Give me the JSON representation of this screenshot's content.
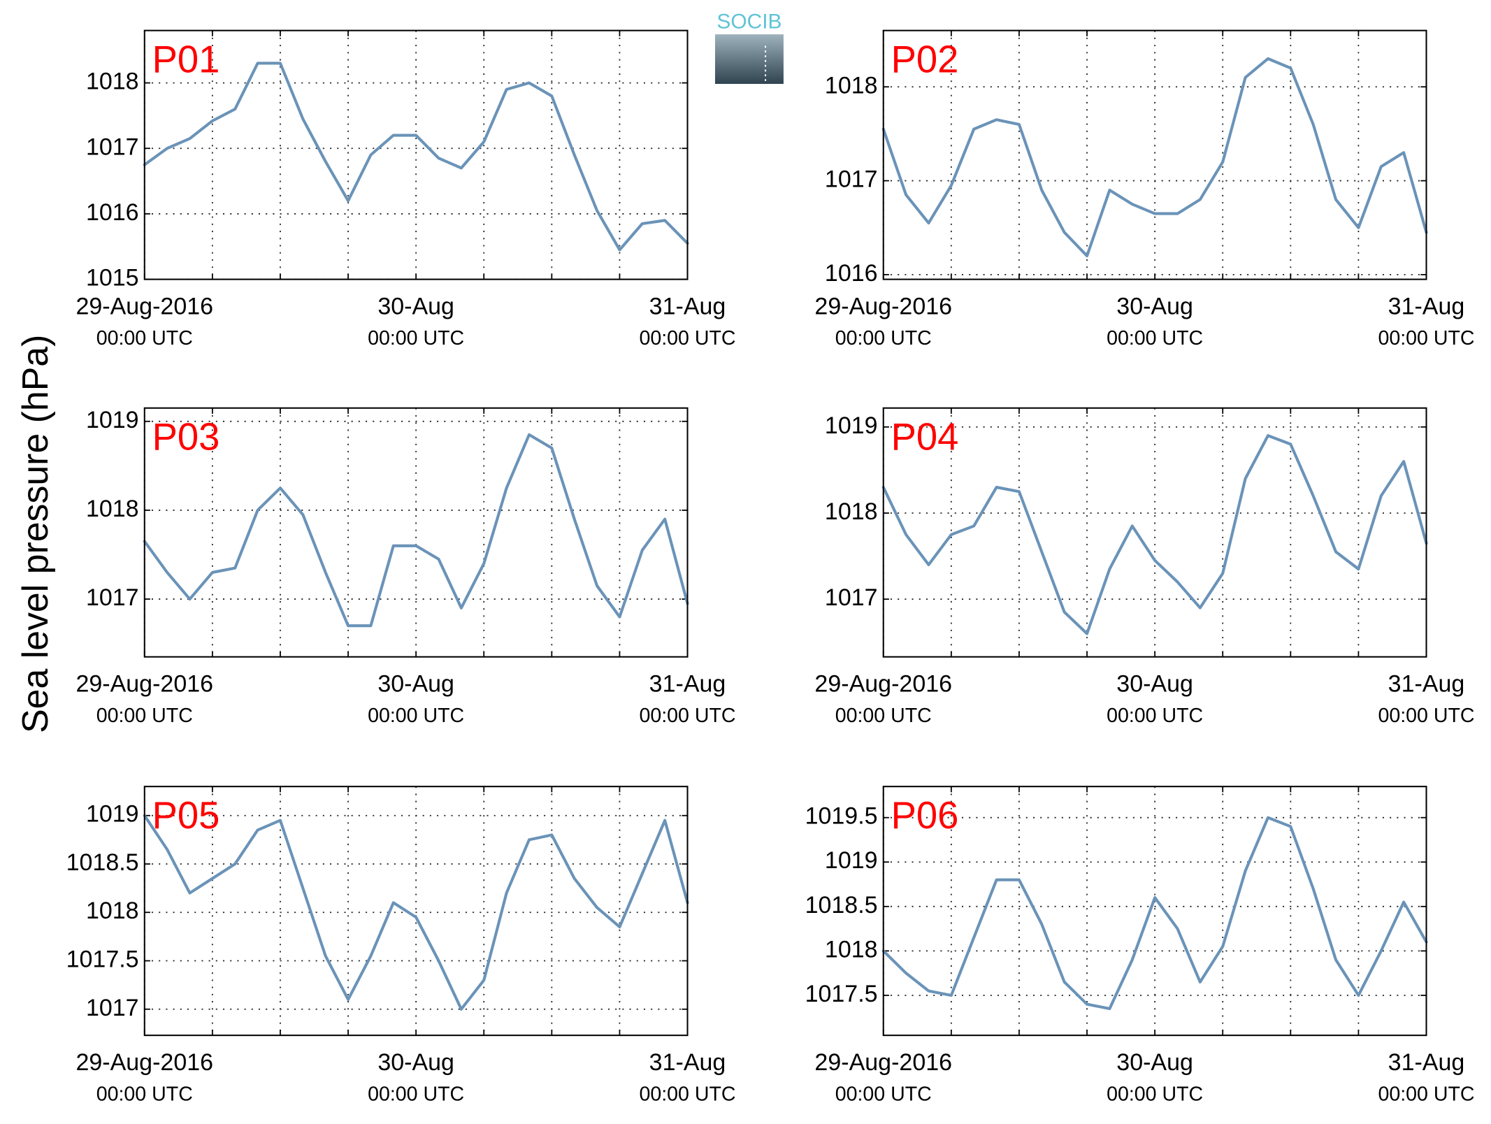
{
  "ylabel": "Sea level pressure (hPa)",
  "logo": "SOCIB",
  "chart_data": [
    {
      "type": "line",
      "title": "P01",
      "color": "#6a93b8",
      "xlim": [
        0,
        48
      ],
      "ylim": [
        1015,
        1018.8
      ],
      "yticks": [
        1015,
        1016,
        1017,
        1018
      ],
      "xticks": [
        {
          "value": 0,
          "label": "29-Aug-2016",
          "sublabel": "00:00 UTC"
        },
        {
          "value": 24,
          "label": "30-Aug",
          "sublabel": "00:00 UTC"
        },
        {
          "value": 48,
          "label": "31-Aug",
          "sublabel": "00:00 UTC"
        }
      ],
      "xminorticks": [
        6,
        12,
        18,
        30,
        36,
        42
      ],
      "grid": true,
      "x": [
        0,
        2,
        4,
        6,
        8,
        10,
        12,
        14,
        16,
        18,
        20,
        22,
        24,
        26,
        28,
        30,
        32,
        34,
        36,
        38,
        40,
        42,
        44,
        46,
        48
      ],
      "values": [
        1016.75,
        1017.0,
        1017.15,
        1017.42,
        1017.6,
        1018.3,
        1018.3,
        1017.45,
        1016.8,
        1016.2,
        1016.9,
        1017.2,
        1017.2,
        1016.85,
        1016.7,
        1017.1,
        1017.9,
        1018.0,
        1017.8,
        1016.9,
        1016.05,
        1015.45,
        1015.85,
        1015.9,
        1015.55
      ]
    },
    {
      "type": "line",
      "title": "P02",
      "color": "#6a93b8",
      "xlim": [
        0,
        48
      ],
      "ylim": [
        1015.95,
        1018.6
      ],
      "yticks": [
        1016,
        1017,
        1018
      ],
      "xticks": [
        {
          "value": 0,
          "label": "29-Aug-2016",
          "sublabel": "00:00 UTC"
        },
        {
          "value": 24,
          "label": "30-Aug",
          "sublabel": "00:00 UTC"
        },
        {
          "value": 48,
          "label": "31-Aug",
          "sublabel": "00:00 UTC"
        }
      ],
      "xminorticks": [
        6,
        12,
        18,
        30,
        36,
        42
      ],
      "grid": true,
      "x": [
        0,
        2,
        4,
        6,
        8,
        10,
        12,
        14,
        16,
        18,
        20,
        22,
        24,
        26,
        28,
        30,
        32,
        34,
        36,
        38,
        40,
        42,
        44,
        46,
        48
      ],
      "values": [
        1017.55,
        1016.85,
        1016.55,
        1016.95,
        1017.55,
        1017.65,
        1017.6,
        1016.9,
        1016.45,
        1016.2,
        1016.9,
        1016.75,
        1016.65,
        1016.65,
        1016.8,
        1017.2,
        1018.1,
        1018.3,
        1018.2,
        1017.6,
        1016.8,
        1016.5,
        1017.15,
        1017.3,
        1016.45
      ]
    },
    {
      "type": "line",
      "title": "P03",
      "color": "#6a93b8",
      "xlim": [
        0,
        48
      ],
      "ylim": [
        1016.35,
        1019.15
      ],
      "yticks": [
        1017,
        1018,
        1019
      ],
      "xticks": [
        {
          "value": 0,
          "label": "29-Aug-2016",
          "sublabel": "00:00 UTC"
        },
        {
          "value": 24,
          "label": "30-Aug",
          "sublabel": "00:00 UTC"
        },
        {
          "value": 48,
          "label": "31-Aug",
          "sublabel": "00:00 UTC"
        }
      ],
      "xminorticks": [
        6,
        12,
        18,
        30,
        36,
        42
      ],
      "grid": true,
      "x": [
        0,
        2,
        4,
        6,
        8,
        10,
        12,
        14,
        16,
        18,
        20,
        22,
        24,
        26,
        28,
        30,
        32,
        34,
        36,
        38,
        40,
        42,
        44,
        46,
        48
      ],
      "values": [
        1017.65,
        1017.3,
        1017.0,
        1017.3,
        1017.35,
        1018.0,
        1018.25,
        1017.95,
        1017.3,
        1016.7,
        1016.7,
        1017.6,
        1017.6,
        1017.45,
        1016.9,
        1017.4,
        1018.25,
        1018.85,
        1018.7,
        1017.9,
        1017.15,
        1016.8,
        1017.55,
        1017.9,
        1016.95
      ]
    },
    {
      "type": "line",
      "title": "P04",
      "color": "#6a93b8",
      "xlim": [
        0,
        48
      ],
      "ylim": [
        1016.33,
        1019.22
      ],
      "yticks": [
        1017,
        1018,
        1019
      ],
      "xticks": [
        {
          "value": 0,
          "label": "29-Aug-2016",
          "sublabel": "00:00 UTC"
        },
        {
          "value": 24,
          "label": "30-Aug",
          "sublabel": "00:00 UTC"
        },
        {
          "value": 48,
          "label": "31-Aug",
          "sublabel": "00:00 UTC"
        }
      ],
      "xminorticks": [
        6,
        12,
        18,
        30,
        36,
        42
      ],
      "grid": true,
      "x": [
        0,
        2,
        4,
        6,
        8,
        10,
        12,
        14,
        16,
        18,
        20,
        22,
        24,
        26,
        28,
        30,
        32,
        34,
        36,
        38,
        40,
        42,
        44,
        46,
        48
      ],
      "values": [
        1018.3,
        1017.75,
        1017.4,
        1017.75,
        1017.85,
        1018.3,
        1018.25,
        1017.55,
        1016.85,
        1016.6,
        1017.35,
        1017.85,
        1017.45,
        1017.2,
        1016.9,
        1017.3,
        1018.4,
        1018.9,
        1018.8,
        1018.2,
        1017.55,
        1017.35,
        1018.2,
        1018.6,
        1017.65
      ]
    },
    {
      "type": "line",
      "title": "P05",
      "color": "#6a93b8",
      "xlim": [
        0,
        48
      ],
      "ylim": [
        1016.73,
        1019.3
      ],
      "yticks": [
        1017,
        1017.5,
        1018,
        1018.5,
        1019
      ],
      "xticks": [
        {
          "value": 0,
          "label": "29-Aug-2016",
          "sublabel": "00:00 UTC"
        },
        {
          "value": 24,
          "label": "30-Aug",
          "sublabel": "00:00 UTC"
        },
        {
          "value": 48,
          "label": "31-Aug",
          "sublabel": "00:00 UTC"
        }
      ],
      "xminorticks": [
        6,
        12,
        18,
        30,
        36,
        42
      ],
      "grid": true,
      "x": [
        0,
        2,
        4,
        6,
        8,
        10,
        12,
        14,
        16,
        18,
        20,
        22,
        24,
        26,
        28,
        30,
        32,
        34,
        36,
        38,
        40,
        42,
        44,
        46,
        48
      ],
      "values": [
        1019.0,
        1018.65,
        1018.2,
        1018.35,
        1018.5,
        1018.85,
        1018.95,
        1018.25,
        1017.55,
        1017.1,
        1017.55,
        1018.1,
        1017.95,
        1017.5,
        1017.0,
        1017.3,
        1018.2,
        1018.75,
        1018.8,
        1018.35,
        1018.05,
        1017.85,
        1018.4,
        1018.95,
        1018.1
      ]
    },
    {
      "type": "line",
      "title": "P06",
      "color": "#6a93b8",
      "xlim": [
        0,
        48
      ],
      "ylim": [
        1017.05,
        1019.85
      ],
      "yticks": [
        1017.5,
        1018,
        1018.5,
        1019,
        1019.5
      ],
      "xticks": [
        {
          "value": 0,
          "label": "29-Aug-2016",
          "sublabel": "00:00 UTC"
        },
        {
          "value": 24,
          "label": "30-Aug",
          "sublabel": "00:00 UTC"
        },
        {
          "value": 48,
          "label": "31-Aug",
          "sublabel": "00:00 UTC"
        }
      ],
      "xminorticks": [
        6,
        12,
        18,
        30,
        36,
        42
      ],
      "grid": true,
      "x": [
        0,
        2,
        4,
        6,
        8,
        10,
        12,
        14,
        16,
        18,
        20,
        22,
        24,
        26,
        28,
        30,
        32,
        34,
        36,
        38,
        40,
        42,
        44,
        46,
        48
      ],
      "values": [
        1018.0,
        1017.75,
        1017.55,
        1017.5,
        1018.15,
        1018.8,
        1018.8,
        1018.3,
        1017.65,
        1017.4,
        1017.35,
        1017.9,
        1018.6,
        1018.25,
        1017.65,
        1018.05,
        1018.9,
        1019.5,
        1019.4,
        1018.7,
        1017.9,
        1017.5,
        1018.0,
        1018.55,
        1018.1
      ]
    }
  ]
}
